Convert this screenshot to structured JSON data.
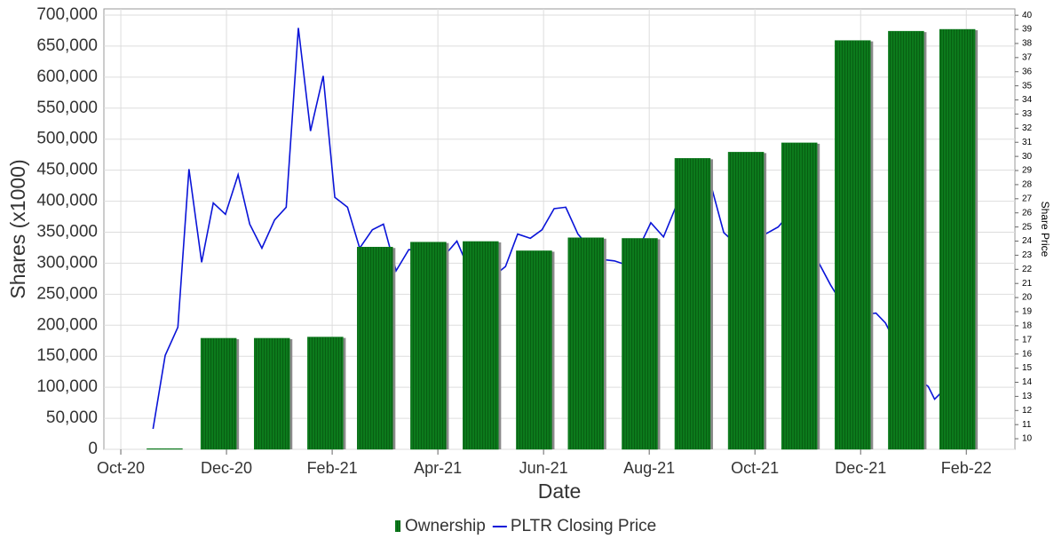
{
  "chart_data": {
    "type": "combo",
    "x_label": "Date",
    "y_label": "Shares (x1000)",
    "y2_label": "Share Price",
    "xlim": [
      -0.32,
      16.92
    ],
    "xticks": [
      {
        "value": 0,
        "label": "Oct-20"
      },
      {
        "value": 2,
        "label": "Dec-20"
      },
      {
        "value": 4,
        "label": "Feb-21"
      },
      {
        "value": 6,
        "label": "Apr-21"
      },
      {
        "value": 8,
        "label": "Jun-21"
      },
      {
        "value": 10,
        "label": "Aug-21"
      },
      {
        "value": 12,
        "label": "Oct-21"
      },
      {
        "value": 14,
        "label": "Dec-21"
      },
      {
        "value": 16,
        "label": "Feb-22"
      }
    ],
    "ylim": [
      0,
      710000
    ],
    "yticks": [
      0,
      {
        "value": 50000,
        "label": "50,000"
      },
      {
        "value": 100000,
        "label": "100,000"
      },
      {
        "value": 150000,
        "label": "150,000"
      },
      {
        "value": 200000,
        "label": "200,000"
      },
      {
        "value": 250000,
        "label": "250,000"
      },
      {
        "value": 300000,
        "label": "300,000"
      },
      {
        "value": 350000,
        "label": "350,000"
      },
      {
        "value": 400000,
        "label": "400,000"
      },
      {
        "value": 450000,
        "label": "450,000"
      },
      {
        "value": 500000,
        "label": "500,000"
      },
      {
        "value": 550000,
        "label": "550,000"
      },
      {
        "value": 600000,
        "label": "600,000"
      },
      {
        "value": 650000,
        "label": "650,000"
      },
      {
        "value": 700000,
        "label": "700,000"
      }
    ],
    "y2lim": [
      9.25,
      40.45
    ],
    "y2ticks": [
      10,
      11,
      12,
      13,
      14,
      15,
      16,
      17,
      18,
      19,
      20,
      21,
      22,
      23,
      24,
      25,
      26,
      27,
      28,
      29,
      30,
      31,
      32,
      33,
      34,
      35,
      36,
      37,
      38,
      39,
      40
    ],
    "grid": true,
    "legend": "bottom",
    "series": [
      {
        "name": "Ownership",
        "type": "bar",
        "color": "#0c7a1c",
        "x": [
          0.83,
          1.85,
          2.86,
          3.87,
          4.81,
          5.82,
          6.81,
          7.82,
          8.8,
          9.82,
          10.82,
          11.83,
          12.84,
          13.85,
          14.86,
          15.83
        ],
        "values": [
          1000,
          179000,
          179000,
          181000,
          326000,
          334000,
          335000,
          320000,
          341000,
          340000,
          469000,
          479000,
          494000,
          659000,
          674000,
          677000
        ]
      },
      {
        "name": "PLTR Closing Price",
        "type": "line",
        "axis": "y2",
        "color": "#0a14d8",
        "x": [
          0.61,
          0.84,
          1.08,
          1.29,
          1.53,
          1.75,
          1.98,
          2.22,
          2.44,
          2.67,
          2.91,
          3.13,
          3.36,
          3.59,
          3.83,
          4.05,
          4.29,
          4.52,
          4.76,
          4.97,
          5.21,
          5.45,
          5.68,
          5.91,
          6.13,
          6.36,
          6.59,
          6.82,
          7.05,
          7.28,
          7.51,
          7.75,
          7.97,
          8.2,
          8.42,
          8.65,
          8.88,
          9.11,
          9.34,
          9.58,
          9.8,
          10.03,
          10.27,
          10.5,
          10.73,
          10.95,
          11.18,
          11.41,
          11.64,
          11.87,
          12.1,
          12.2,
          12.44,
          12.67,
          12.9,
          13.21,
          13.43,
          13.66,
          13.9,
          14.07,
          14.29,
          14.47,
          14.7,
          14.93,
          15.1,
          15.28,
          15.4,
          15.56
        ],
        "values": [
          10.7,
          15.9,
          17.9,
          29.1,
          22.5,
          26.7,
          25.9,
          28.7,
          25.2,
          23.5,
          25.5,
          26.4,
          39.1,
          31.8,
          35.7,
          27.1,
          26.4,
          23.5,
          24.8,
          25.2,
          21.9,
          23.4,
          23.3,
          22.8,
          23.0,
          24.0,
          22.0,
          21.5,
          21.5,
          22.2,
          24.5,
          24.2,
          24.8,
          26.3,
          26.4,
          24.5,
          23.5,
          22.7,
          22.6,
          22.3,
          23.5,
          25.3,
          24.3,
          26.4,
          27.5,
          28.0,
          27.8,
          24.6,
          23.8,
          24.0,
          24.2,
          24.5,
          25.0,
          26.0,
          26.5,
          22.45,
          20.9,
          19.5,
          19.0,
          18.8,
          18.9,
          18.2,
          16.5,
          15.0,
          14.2,
          13.7,
          12.8,
          13.4
        ]
      }
    ]
  }
}
